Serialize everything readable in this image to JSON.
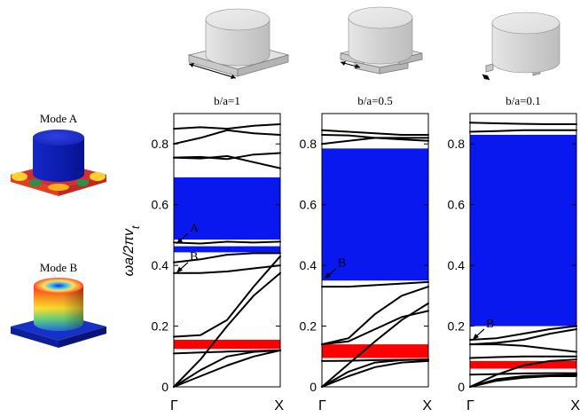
{
  "figure": {
    "mode_a_label": "Mode A",
    "mode_b_label": "Mode B",
    "y_axis_label": "ωa/2πv",
    "y_axis_subscript": "t",
    "colors": {
      "band_gap_blue": "#0a18f0",
      "band_gap_red": "#ff0000",
      "band_line": "#000000"
    }
  },
  "chart_data": [
    {
      "type": "line",
      "title": "b/a=1",
      "x_ticks": [
        "Γ",
        "X"
      ],
      "ylim": [
        0,
        0.9
      ],
      "y_ticks": [
        "0",
        "0.2",
        "0.4",
        "0.6",
        "0.8"
      ],
      "mode_markers": [
        {
          "label": "A",
          "x": 0.0,
          "y": 0.47
        },
        {
          "label": "B",
          "x": 0.0,
          "y": 0.375
        }
      ],
      "bands_gaps": [
        {
          "color": "blue",
          "ymin": 0.485,
          "ymax": 0.69
        },
        {
          "color": "blue",
          "ymin": 0.443,
          "ymax": 0.463
        },
        {
          "color": "red",
          "ymin": 0.125,
          "ymax": 0.155
        }
      ],
      "series": [
        {
          "x": [
            0,
            0.25,
            0.5,
            0.75,
            1
          ],
          "y": [
            0,
            0.035,
            0.07,
            0.1,
            0.12
          ]
        },
        {
          "x": [
            0,
            0.25,
            0.5,
            0.75,
            1
          ],
          "y": [
            0,
            0.055,
            0.1,
            0.115,
            0.12
          ]
        },
        {
          "x": [
            0,
            0.25,
            0.5,
            0.75,
            1
          ],
          "y": [
            0.11,
            0.113,
            0.116,
            0.118,
            0.12
          ]
        },
        {
          "x": [
            0,
            0.25,
            0.5,
            0.75,
            1
          ],
          "y": [
            0.0,
            0.09,
            0.2,
            0.3,
            0.375
          ]
        },
        {
          "x": [
            0,
            0.25,
            0.5,
            0.75,
            1
          ],
          "y": [
            0.165,
            0.17,
            0.22,
            0.33,
            0.43
          ]
        },
        {
          "x": [
            0,
            0.25,
            0.5,
            0.75,
            1
          ],
          "y": [
            0.375,
            0.375,
            0.38,
            0.39,
            0.4
          ]
        },
        {
          "x": [
            0,
            0.25,
            0.5,
            0.75,
            1
          ],
          "y": [
            0.41,
            0.42,
            0.435,
            0.44,
            0.44
          ]
        },
        {
          "x": [
            0,
            0.25,
            0.5,
            0.75,
            1
          ],
          "y": [
            0.475,
            0.472,
            0.478,
            0.475,
            0.478
          ]
        },
        {
          "x": [
            0,
            0.25,
            0.5,
            0.75,
            1
          ],
          "y": [
            0.755,
            0.752,
            0.76,
            0.74,
            0.72
          ]
        },
        {
          "x": [
            0,
            0.25,
            0.5,
            0.75,
            1
          ],
          "y": [
            0.755,
            0.757,
            0.75,
            0.765,
            0.77
          ]
        },
        {
          "x": [
            0,
            0.25,
            0.5,
            0.75,
            1
          ],
          "y": [
            0.8,
            0.82,
            0.845,
            0.835,
            0.83
          ]
        },
        {
          "x": [
            0,
            0.25,
            0.5,
            0.75,
            1
          ],
          "y": [
            0.85,
            0.855,
            0.85,
            0.86,
            0.865
          ]
        }
      ]
    },
    {
      "type": "line",
      "title": "b/a=0.5",
      "x_ticks": [
        "Γ",
        "X"
      ],
      "ylim": [
        0,
        0.9
      ],
      "y_ticks": [
        "0",
        "0.2",
        "0.4",
        "0.6",
        "0.8"
      ],
      "mode_markers": [
        {
          "label": "B",
          "x": 0.0,
          "y": 0.355
        }
      ],
      "bands_gaps": [
        {
          "color": "blue",
          "ymin": 0.35,
          "ymax": 0.785
        },
        {
          "color": "red",
          "ymin": 0.095,
          "ymax": 0.14
        }
      ],
      "series": [
        {
          "x": [
            0,
            0.25,
            0.5,
            0.75,
            1
          ],
          "y": [
            0,
            0.035,
            0.065,
            0.08,
            0.085
          ]
        },
        {
          "x": [
            0,
            0.25,
            0.5,
            0.75,
            1
          ],
          "y": [
            0,
            0.05,
            0.08,
            0.088,
            0.09
          ]
        },
        {
          "x": [
            0,
            0.25,
            0.5,
            0.75,
            1
          ],
          "y": [
            0.085,
            0.086,
            0.088,
            0.089,
            0.09
          ]
        },
        {
          "x": [
            0,
            0.25,
            0.5,
            0.75,
            1
          ],
          "y": [
            0,
            0.075,
            0.15,
            0.22,
            0.275
          ]
        },
        {
          "x": [
            0,
            0.25,
            0.5,
            0.75,
            1
          ],
          "y": [
            0.14,
            0.15,
            0.19,
            0.23,
            0.25
          ]
        },
        {
          "x": [
            0,
            0.25,
            0.5,
            0.75,
            1
          ],
          "y": [
            0.14,
            0.16,
            0.24,
            0.3,
            0.33
          ]
        },
        {
          "x": [
            0,
            0.25,
            0.5,
            0.75,
            1
          ],
          "y": [
            0.33,
            0.33,
            0.335,
            0.34,
            0.345
          ]
        },
        {
          "x": [
            0,
            0.25,
            0.5,
            0.75,
            1
          ],
          "y": [
            0.8,
            0.81,
            0.82,
            0.82,
            0.82
          ]
        },
        {
          "x": [
            0,
            0.25,
            0.5,
            0.75,
            1
          ],
          "y": [
            0.83,
            0.828,
            0.82,
            0.815,
            0.81
          ]
        },
        {
          "x": [
            0,
            0.25,
            0.5,
            0.75,
            1
          ],
          "y": [
            0.845,
            0.84,
            0.835,
            0.83,
            0.83
          ]
        }
      ]
    },
    {
      "type": "line",
      "title": "b/a=0.1",
      "x_ticks": [
        "Γ",
        "X"
      ],
      "ylim": [
        0,
        0.9
      ],
      "y_ticks": [
        "0",
        "0.2",
        "0.4",
        "0.6",
        "0.8"
      ],
      "mode_markers": [
        {
          "label": "B",
          "x": 0.0,
          "y": 0.155
        }
      ],
      "bands_gaps": [
        {
          "color": "blue",
          "ymin": 0.2,
          "ymax": 0.83
        },
        {
          "color": "red",
          "ymin": 0.06,
          "ymax": 0.085
        }
      ],
      "series": [
        {
          "x": [
            0,
            0.25,
            0.5,
            0.75,
            1
          ],
          "y": [
            0,
            0.02,
            0.03,
            0.035,
            0.035
          ]
        },
        {
          "x": [
            0,
            0.25,
            0.5,
            0.75,
            1
          ],
          "y": [
            0,
            0.025,
            0.035,
            0.038,
            0.04
          ]
        },
        {
          "x": [
            0,
            0.25,
            0.5,
            0.75,
            1
          ],
          "y": [
            0.04,
            0.042,
            0.044,
            0.045,
            0.045
          ]
        },
        {
          "x": [
            0,
            0.25,
            0.5,
            0.75,
            1
          ],
          "y": [
            0,
            0.04,
            0.07,
            0.085,
            0.09
          ]
        },
        {
          "x": [
            0,
            0.25,
            0.5,
            0.75,
            1
          ],
          "y": [
            0.095,
            0.098,
            0.1,
            0.1,
            0.1
          ]
        },
        {
          "x": [
            0,
            0.25,
            0.5,
            0.75,
            1
          ],
          "y": [
            0.14,
            0.14,
            0.135,
            0.125,
            0.115
          ]
        },
        {
          "x": [
            0,
            0.25,
            0.5,
            0.75,
            1
          ],
          "y": [
            0.14,
            0.145,
            0.155,
            0.175,
            0.19
          ]
        },
        {
          "x": [
            0,
            0.25,
            0.5,
            0.75,
            1
          ],
          "y": [
            0.155,
            0.16,
            0.175,
            0.19,
            0.2
          ]
        },
        {
          "x": [
            0,
            0.25,
            0.5,
            0.75,
            1
          ],
          "y": [
            0.84,
            0.842,
            0.845,
            0.845,
            0.845
          ]
        },
        {
          "x": [
            0,
            0.25,
            0.5,
            0.75,
            1
          ],
          "y": [
            0.87,
            0.868,
            0.866,
            0.865,
            0.865
          ]
        }
      ]
    }
  ]
}
